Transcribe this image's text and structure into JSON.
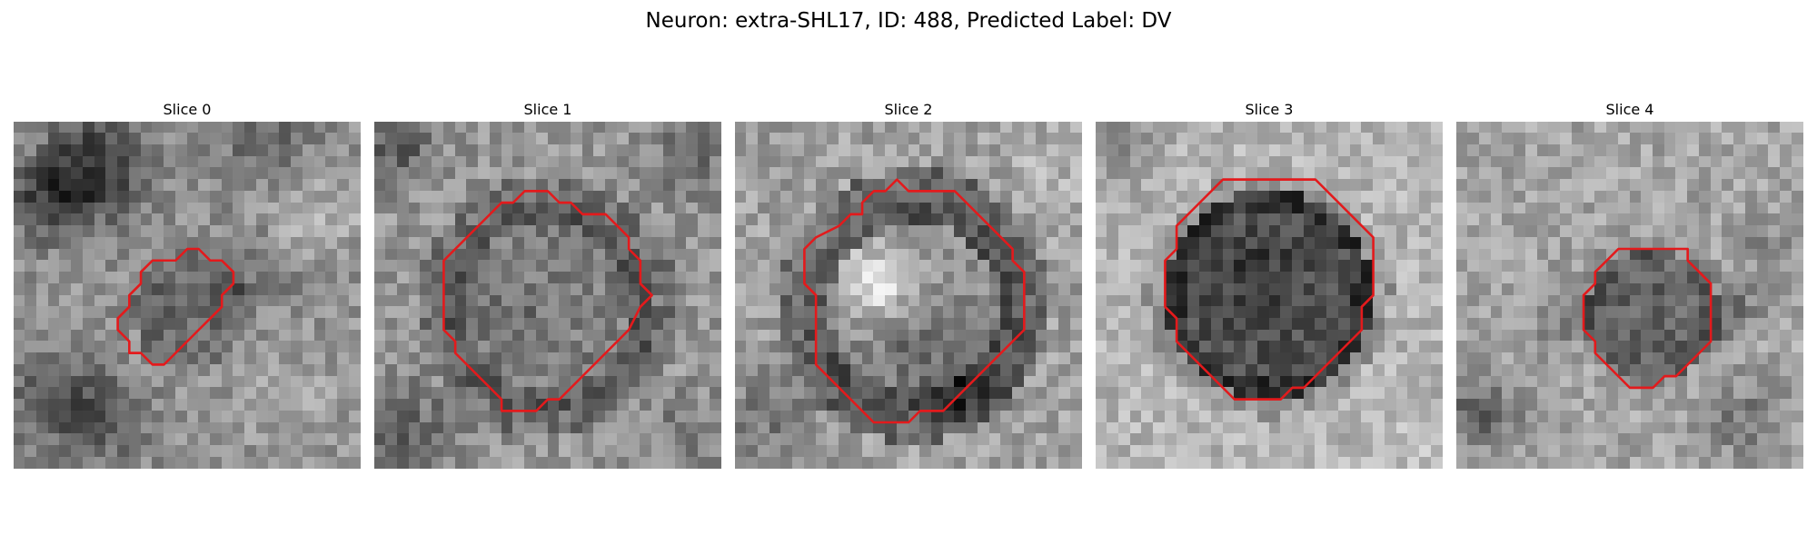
{
  "figure": {
    "title": "Neuron: extra-SHL17, ID: 488, Predicted Label: DV"
  },
  "colors": {
    "background": "#ffffff",
    "contour": "#e31a1c",
    "colormap": "gray"
  },
  "image_grid": {
    "size": 30
  },
  "panels": [
    {
      "label": "Slice 0",
      "contour": [
        [
          16,
          11
        ],
        [
          17,
          12
        ],
        [
          18,
          12
        ],
        [
          19,
          13
        ],
        [
          19,
          14
        ],
        [
          18,
          15
        ],
        [
          18,
          16
        ],
        [
          17,
          17
        ],
        [
          16,
          18
        ],
        [
          15,
          19
        ],
        [
          14,
          20
        ],
        [
          13,
          21
        ],
        [
          12,
          21
        ],
        [
          11,
          20
        ],
        [
          10,
          20
        ],
        [
          10,
          19
        ],
        [
          9,
          18
        ],
        [
          9,
          17
        ],
        [
          10,
          16
        ],
        [
          10,
          15
        ],
        [
          11,
          14
        ],
        [
          11,
          13
        ],
        [
          12,
          12
        ],
        [
          13,
          12
        ],
        [
          14,
          12
        ],
        [
          15,
          11
        ]
      ],
      "field": {
        "base": 145,
        "center": [
          15.2,
          16.4
        ],
        "radius": 5.0,
        "inside_delta": -40,
        "rim_delta": 0,
        "rim_width": 1.2,
        "blobs": [
          [
            7,
            4,
            4,
            -95
          ],
          [
            3,
            7,
            3,
            -70
          ],
          [
            22,
            2,
            4,
            -40
          ],
          [
            4,
            24,
            4,
            -60
          ],
          [
            8,
            26,
            3,
            -50
          ],
          [
            24,
            24,
            4,
            25
          ],
          [
            26,
            8,
            4,
            35
          ],
          [
            21,
            13,
            3,
            -35
          ]
        ],
        "noise": 32,
        "seed": 11
      }
    },
    {
      "label": "Slice 1",
      "contour": [
        [
          14,
          6
        ],
        [
          13,
          6
        ],
        [
          12,
          7
        ],
        [
          11,
          7
        ],
        [
          10,
          8
        ],
        [
          9,
          9
        ],
        [
          8,
          10
        ],
        [
          7,
          11
        ],
        [
          6,
          12
        ],
        [
          6,
          13
        ],
        [
          6,
          14
        ],
        [
          6,
          15
        ],
        [
          6,
          16
        ],
        [
          6,
          17
        ],
        [
          6,
          18
        ],
        [
          7,
          19
        ],
        [
          7,
          20
        ],
        [
          8,
          21
        ],
        [
          9,
          22
        ],
        [
          10,
          23
        ],
        [
          11,
          24
        ],
        [
          11,
          25
        ],
        [
          12,
          25
        ],
        [
          13,
          25
        ],
        [
          14,
          25
        ],
        [
          15,
          24
        ],
        [
          16,
          24
        ],
        [
          17,
          23
        ],
        [
          18,
          22
        ],
        [
          19,
          21
        ],
        [
          20,
          20
        ],
        [
          21,
          19
        ],
        [
          22,
          18
        ],
        [
          23,
          16
        ],
        [
          24,
          15
        ],
        [
          23,
          14
        ],
        [
          23,
          13
        ],
        [
          23,
          12
        ],
        [
          22,
          11
        ],
        [
          22,
          10
        ],
        [
          21,
          9
        ],
        [
          20,
          8
        ],
        [
          18,
          8
        ],
        [
          17,
          7
        ],
        [
          16,
          7
        ],
        [
          15,
          6
        ]
      ],
      "field": {
        "base": 150,
        "center": [
          15.0,
          16.0
        ],
        "radius": 9.2,
        "inside_delta": -25,
        "rim_delta": -35,
        "rim_width": 2.0,
        "blobs": [
          [
            2,
            2,
            3,
            -60
          ],
          [
            27,
            3,
            3,
            -40
          ],
          [
            3,
            27,
            4,
            -50
          ],
          [
            27,
            27,
            3,
            -30
          ],
          [
            12,
            17,
            2,
            -20
          ]
        ],
        "noise": 34,
        "seed": 23
      }
    },
    {
      "label": "Slice 2",
      "contour": [
        [
          14,
          5
        ],
        [
          13,
          6
        ],
        [
          12,
          6
        ],
        [
          11,
          7
        ],
        [
          11,
          8
        ],
        [
          10,
          8
        ],
        [
          9,
          9
        ],
        [
          7,
          10
        ],
        [
          6,
          11
        ],
        [
          6,
          12
        ],
        [
          6,
          13
        ],
        [
          6,
          14
        ],
        [
          7,
          15
        ],
        [
          7,
          16
        ],
        [
          7,
          17
        ],
        [
          7,
          18
        ],
        [
          7,
          19
        ],
        [
          7,
          20
        ],
        [
          7,
          21
        ],
        [
          8,
          22
        ],
        [
          9,
          23
        ],
        [
          10,
          24
        ],
        [
          11,
          25
        ],
        [
          12,
          26
        ],
        [
          13,
          26
        ],
        [
          14,
          26
        ],
        [
          15,
          26
        ],
        [
          16,
          25
        ],
        [
          17,
          25
        ],
        [
          18,
          25
        ],
        [
          19,
          24
        ],
        [
          20,
          23
        ],
        [
          21,
          22
        ],
        [
          22,
          21
        ],
        [
          23,
          20
        ],
        [
          24,
          19
        ],
        [
          25,
          18
        ],
        [
          25,
          17
        ],
        [
          25,
          16
        ],
        [
          25,
          15
        ],
        [
          25,
          14
        ],
        [
          25,
          13
        ],
        [
          24,
          12
        ],
        [
          24,
          11
        ],
        [
          23,
          10
        ],
        [
          22,
          9
        ],
        [
          21,
          8
        ],
        [
          20,
          7
        ],
        [
          19,
          6
        ],
        [
          18,
          6
        ],
        [
          17,
          6
        ],
        [
          16,
          6
        ],
        [
          15,
          6
        ]
      ],
      "field": {
        "base": 160,
        "center": [
          15.5,
          16.0
        ],
        "radius": 9.5,
        "inside_delta": -20,
        "rim_delta": -55,
        "rim_width": 2.2,
        "blobs": [
          [
            12,
            14,
            3,
            90
          ],
          [
            15,
            20,
            3,
            -30
          ],
          [
            20,
            23,
            3,
            -60
          ],
          [
            3,
            25,
            4,
            -40
          ],
          [
            27,
            5,
            3,
            20
          ]
        ],
        "noise": 34,
        "seed": 37
      }
    },
    {
      "label": "Slice 3",
      "contour": [
        [
          11,
          5
        ],
        [
          10,
          6
        ],
        [
          9,
          7
        ],
        [
          8,
          8
        ],
        [
          7,
          9
        ],
        [
          7,
          10
        ],
        [
          7,
          11
        ],
        [
          6,
          12
        ],
        [
          6,
          13
        ],
        [
          6,
          14
        ],
        [
          6,
          15
        ],
        [
          6,
          16
        ],
        [
          7,
          17
        ],
        [
          7,
          18
        ],
        [
          7,
          19
        ],
        [
          8,
          20
        ],
        [
          9,
          21
        ],
        [
          10,
          22
        ],
        [
          11,
          23
        ],
        [
          12,
          24
        ],
        [
          13,
          24
        ],
        [
          14,
          24
        ],
        [
          15,
          24
        ],
        [
          16,
          24
        ],
        [
          17,
          23
        ],
        [
          18,
          23
        ],
        [
          19,
          22
        ],
        [
          20,
          21
        ],
        [
          21,
          20
        ],
        [
          22,
          19
        ],
        [
          23,
          18
        ],
        [
          23,
          17
        ],
        [
          23,
          16
        ],
        [
          24,
          15
        ],
        [
          24,
          14
        ],
        [
          24,
          13
        ],
        [
          24,
          12
        ],
        [
          24,
          11
        ],
        [
          24,
          10
        ],
        [
          23,
          9
        ],
        [
          22,
          8
        ],
        [
          21,
          7
        ],
        [
          20,
          6
        ],
        [
          19,
          5
        ],
        [
          18,
          5
        ],
        [
          17,
          5
        ],
        [
          16,
          5
        ],
        [
          15,
          5
        ],
        [
          14,
          5
        ],
        [
          13,
          5
        ],
        [
          12,
          5
        ]
      ],
      "field": {
        "base": 180,
        "center": [
          15.0,
          15.0
        ],
        "radius": 9.0,
        "inside_delta": -100,
        "rim_delta": -30,
        "rim_width": 1.6,
        "blobs": [
          [
            14,
            13,
            3,
            -25
          ],
          [
            2,
            2,
            3,
            -40
          ],
          [
            27,
            28,
            3,
            15
          ]
        ],
        "noise": 30,
        "seed": 53
      }
    },
    {
      "label": "Slice 4",
      "contour": [
        [
          16,
          11
        ],
        [
          15,
          11
        ],
        [
          14,
          11
        ],
        [
          13,
          12
        ],
        [
          12,
          13
        ],
        [
          12,
          14
        ],
        [
          11,
          15
        ],
        [
          11,
          16
        ],
        [
          11,
          17
        ],
        [
          11,
          18
        ],
        [
          12,
          19
        ],
        [
          12,
          20
        ],
        [
          13,
          21
        ],
        [
          14,
          22
        ],
        [
          15,
          23
        ],
        [
          16,
          23
        ],
        [
          17,
          23
        ],
        [
          18,
          22
        ],
        [
          19,
          22
        ],
        [
          20,
          21
        ],
        [
          21,
          20
        ],
        [
          22,
          19
        ],
        [
          22,
          18
        ],
        [
          22,
          17
        ],
        [
          22,
          16
        ],
        [
          22,
          15
        ],
        [
          22,
          14
        ],
        [
          21,
          13
        ],
        [
          20,
          12
        ],
        [
          20,
          11
        ],
        [
          19,
          11
        ],
        [
          18,
          11
        ],
        [
          17,
          11
        ]
      ],
      "field": {
        "base": 165,
        "center": [
          17.0,
          16.8
        ],
        "radius": 5.8,
        "inside_delta": -65,
        "rim_delta": -10,
        "rim_width": 1.2,
        "blobs": [
          [
            24,
            16,
            2,
            -55
          ],
          [
            2,
            25,
            3,
            -70
          ],
          [
            25,
            26,
            3,
            -45
          ],
          [
            9,
            17,
            3,
            -30
          ],
          [
            27,
            11,
            2,
            -40
          ]
        ],
        "noise": 32,
        "seed": 71
      }
    }
  ]
}
